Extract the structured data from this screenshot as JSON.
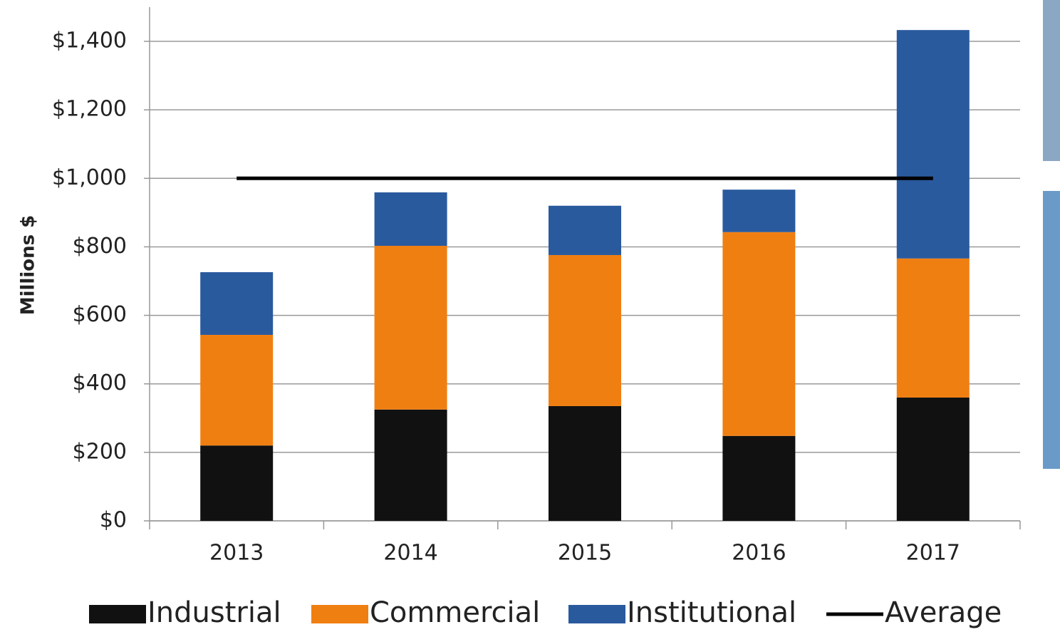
{
  "chart_data": {
    "type": "stacked_bar",
    "y_label": "Millions $",
    "categories": [
      "2013",
      "2014",
      "2015",
      "2016",
      "2017"
    ],
    "series": [
      {
        "name": "Industrial",
        "color": "#111111",
        "values": [
          220,
          325,
          335,
          248,
          360
        ]
      },
      {
        "name": "Commercial",
        "color": "#f07f12",
        "values": [
          323,
          478,
          441,
          595,
          406
        ]
      },
      {
        "name": "Institutional",
        "color": "#2a5a9e",
        "values": [
          183,
          156,
          144,
          124,
          667
        ]
      },
      {
        "name": "Average",
        "type": "line",
        "color": "#000000",
        "values": [
          1000,
          1000,
          1000,
          1000,
          1000
        ]
      }
    ],
    "ylim": [
      0,
      1500
    ],
    "yticks": [
      {
        "value": 0,
        "label": "$0"
      },
      {
        "value": 200,
        "label": "$200"
      },
      {
        "value": 400,
        "label": "$400"
      },
      {
        "value": 600,
        "label": "$600"
      },
      {
        "value": 800,
        "label": "$800"
      },
      {
        "value": 1000,
        "label": "$1,000"
      },
      {
        "value": 1200,
        "label": "$1,200"
      },
      {
        "value": 1400,
        "label": "$1,400"
      }
    ],
    "grid": true,
    "legend": "bottom"
  }
}
